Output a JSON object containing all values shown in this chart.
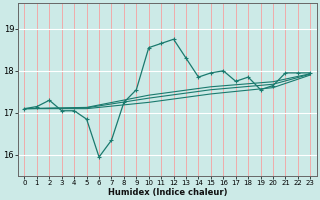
{
  "title": "",
  "xlabel": "Humidex (Indice chaleur)",
  "bg_color": "#cceae7",
  "line_color": "#1a7a6e",
  "grid_color_h": "#ffffff",
  "grid_color_v": "#f5a0a0",
  "xlim": [
    -0.5,
    23.5
  ],
  "ylim": [
    15.5,
    19.6
  ],
  "yticks": [
    16,
    17,
    18,
    19
  ],
  "xticks": [
    0,
    1,
    2,
    3,
    4,
    5,
    6,
    7,
    8,
    9,
    10,
    11,
    12,
    13,
    14,
    15,
    16,
    17,
    18,
    19,
    20,
    21,
    22,
    23
  ],
  "series1": [
    [
      0,
      17.1
    ],
    [
      1,
      17.15
    ],
    [
      2,
      17.3
    ],
    [
      3,
      17.05
    ],
    [
      4,
      17.05
    ],
    [
      5,
      16.85
    ],
    [
      6,
      15.95
    ],
    [
      7,
      16.35
    ],
    [
      8,
      17.25
    ],
    [
      9,
      17.55
    ],
    [
      10,
      18.55
    ],
    [
      11,
      18.65
    ],
    [
      12,
      18.75
    ],
    [
      13,
      18.3
    ],
    [
      14,
      17.85
    ],
    [
      15,
      17.95
    ],
    [
      16,
      18.0
    ],
    [
      17,
      17.75
    ],
    [
      18,
      17.85
    ],
    [
      19,
      17.55
    ],
    [
      20,
      17.65
    ],
    [
      21,
      17.95
    ],
    [
      22,
      17.95
    ],
    [
      23,
      17.95
    ]
  ],
  "series2": [
    [
      0,
      17.1
    ],
    [
      5,
      17.1
    ],
    [
      10,
      17.25
    ],
    [
      15,
      17.45
    ],
    [
      20,
      17.6
    ],
    [
      23,
      17.9
    ]
  ],
  "series3": [
    [
      0,
      17.1
    ],
    [
      5,
      17.12
    ],
    [
      10,
      17.35
    ],
    [
      15,
      17.55
    ],
    [
      20,
      17.68
    ],
    [
      23,
      17.92
    ]
  ],
  "series4": [
    [
      0,
      17.1
    ],
    [
      5,
      17.13
    ],
    [
      10,
      17.42
    ],
    [
      15,
      17.62
    ],
    [
      20,
      17.74
    ],
    [
      23,
      17.93
    ]
  ]
}
